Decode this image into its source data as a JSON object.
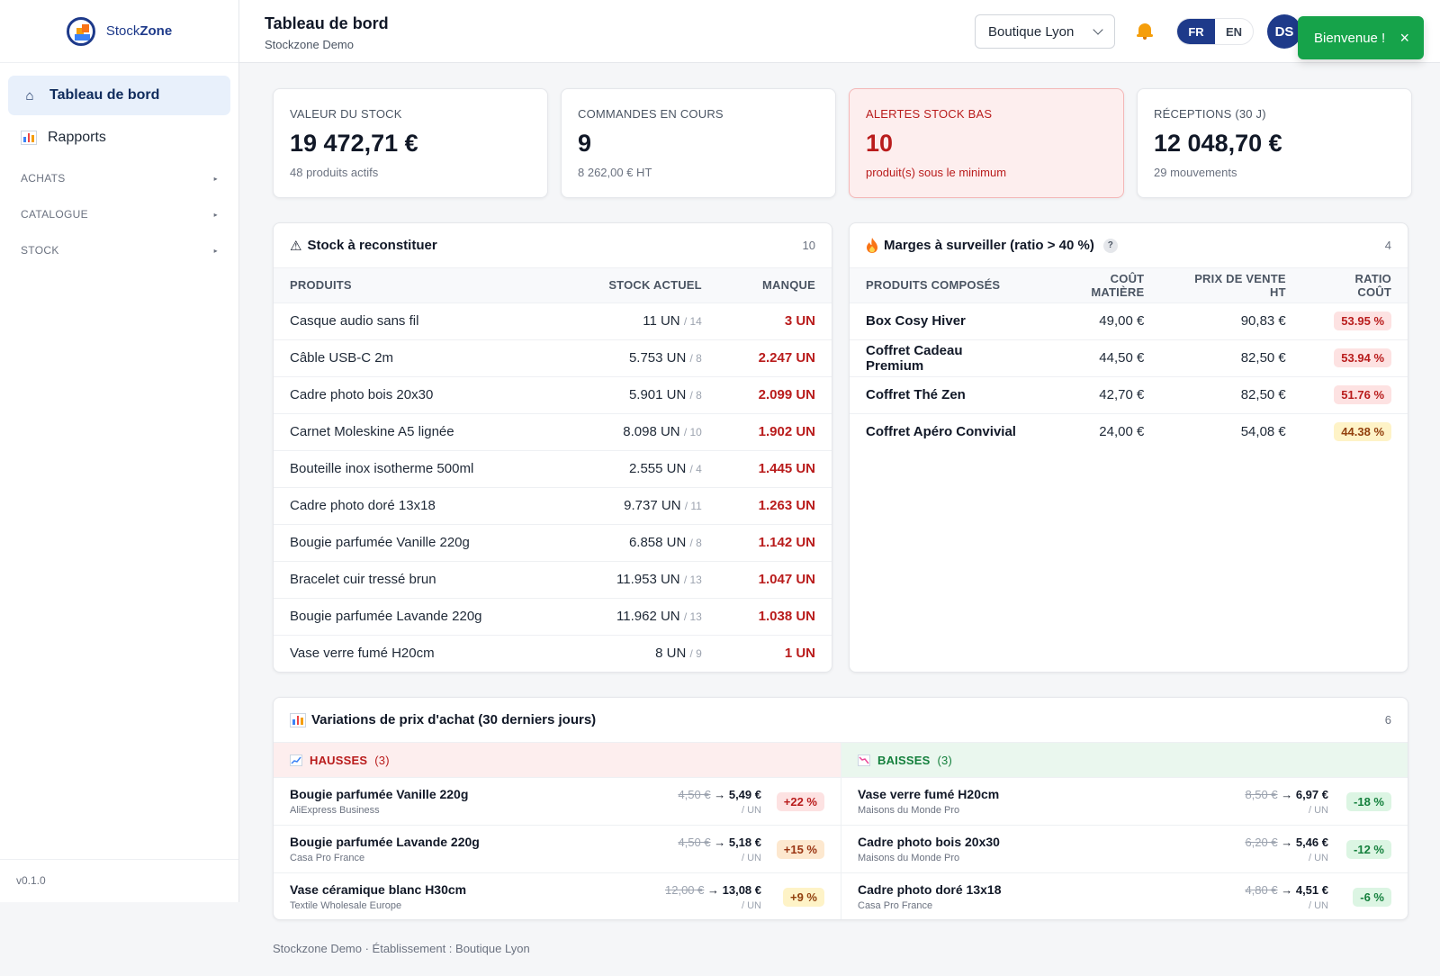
{
  "app": {
    "name_prefix": "Stock",
    "name_suffix": "Zone",
    "version": "v0.1.0"
  },
  "sidebar": {
    "items": [
      {
        "label": "Tableau de bord",
        "icon": "home-icon",
        "active": true
      },
      {
        "label": "Rapports",
        "icon": "chart-icon",
        "active": false
      }
    ],
    "sections": [
      "ACHATS",
      "CATALOGUE",
      "STOCK"
    ]
  },
  "header": {
    "title": "Tableau de bord",
    "subtitle": "Stockzone Demo",
    "store": "Boutique Lyon",
    "lang": [
      "FR",
      "EN"
    ],
    "lang_active": "FR",
    "avatar": "DS",
    "toast": "Bienvenue !",
    "toast_close": "×"
  },
  "kpis": [
    {
      "label": "VALEUR DU STOCK",
      "value": "19 472,71 €",
      "sub": "48 produits actifs"
    },
    {
      "label": "COMMANDES EN COURS",
      "value": "9",
      "sub": "8 262,00 € HT"
    },
    {
      "label": "ALERTES STOCK BAS",
      "value": "10",
      "sub": "produit(s) sous le minimum"
    },
    {
      "label": "RÉCEPTIONS (30 J)",
      "value": "12 048,70 €",
      "sub": "29 mouvements"
    }
  ],
  "restock": {
    "icon": "⚠",
    "title": "Stock à reconstituer",
    "count": "10",
    "columns": [
      "PRODUITS",
      "STOCK ACTUEL",
      "MANQUE"
    ],
    "rows": [
      {
        "product": "Casque audio sans fil",
        "stock": "11 UN",
        "min": "/ 14",
        "missing": "3 UN"
      },
      {
        "product": "Câble USB-C 2m",
        "stock": "5.753 UN",
        "min": "/ 8",
        "missing": "2.247 UN"
      },
      {
        "product": "Cadre photo bois 20x30",
        "stock": "5.901 UN",
        "min": "/ 8",
        "missing": "2.099 UN"
      },
      {
        "product": "Carnet Moleskine A5 lignée",
        "stock": "8.098 UN",
        "min": "/ 10",
        "missing": "1.902 UN"
      },
      {
        "product": "Bouteille inox isotherme 500ml",
        "stock": "2.555 UN",
        "min": "/ 4",
        "missing": "1.445 UN"
      },
      {
        "product": "Cadre photo doré 13x18",
        "stock": "9.737 UN",
        "min": "/ 11",
        "missing": "1.263 UN"
      },
      {
        "product": "Bougie parfumée Vanille 220g",
        "stock": "6.858 UN",
        "min": "/ 8",
        "missing": "1.142 UN"
      },
      {
        "product": "Bracelet cuir tressé brun",
        "stock": "11.953 UN",
        "min": "/ 13",
        "missing": "1.047 UN"
      },
      {
        "product": "Bougie parfumée Lavande 220g",
        "stock": "11.962 UN",
        "min": "/ 13",
        "missing": "1.038 UN"
      },
      {
        "product": "Vase verre fumé H20cm",
        "stock": "8 UN",
        "min": "/ 9",
        "missing": "1 UN"
      }
    ]
  },
  "margins": {
    "title": "Marges à surveiller (ratio > 40 %)",
    "help": "?",
    "count": "4",
    "columns": [
      "PRODUITS COMPOSÉS",
      "COÛT MATIÈRE",
      "PRIX DE VENTE HT",
      "RATIO COÛT"
    ],
    "rows": [
      {
        "product": "Box Cosy Hiver",
        "cost": "49,00 €",
        "price": "90,83 €",
        "ratio": "53.95 %",
        "level": "red"
      },
      {
        "product": "Coffret Cadeau Premium",
        "cost": "44,50 €",
        "price": "82,50 €",
        "ratio": "53.94 %",
        "level": "red"
      },
      {
        "product": "Coffret Thé Zen",
        "cost": "42,70 €",
        "price": "82,50 €",
        "ratio": "51.76 %",
        "level": "red"
      },
      {
        "product": "Coffret Apéro Convivial",
        "cost": "24,00 €",
        "price": "54,08 €",
        "ratio": "44.38 %",
        "level": "yellow"
      }
    ]
  },
  "variations": {
    "title": "Variations de prix d'achat (30 derniers jours)",
    "count": "6",
    "up": {
      "label": "HAUSSES",
      "count": "(3)",
      "rows": [
        {
          "product": "Bougie parfumée Vanille 220g",
          "supplier": "AliExpress Business",
          "old": "4,50 €",
          "arrow": "→",
          "new": "5,49 €",
          "unit": "/ UN",
          "delta": "+22 %",
          "tone": "red"
        },
        {
          "product": "Bougie parfumée Lavande 220g",
          "supplier": "Casa Pro France",
          "old": "4,50 €",
          "arrow": "→",
          "new": "5,18 €",
          "unit": "/ UN",
          "delta": "+15 %",
          "tone": "orange"
        },
        {
          "product": "Vase céramique blanc H30cm",
          "supplier": "Textile Wholesale Europe",
          "old": "12,00 €",
          "arrow": "→",
          "new": "13,08 €",
          "unit": "/ UN",
          "delta": "+9 %",
          "tone": "yellow"
        }
      ]
    },
    "down": {
      "label": "BAISSES",
      "count": "(3)",
      "rows": [
        {
          "product": "Vase verre fumé H20cm",
          "supplier": "Maisons du Monde Pro",
          "old": "8,50 €",
          "arrow": "→",
          "new": "6,97 €",
          "unit": "/ UN",
          "delta": "-18 %"
        },
        {
          "product": "Cadre photo bois 20x30",
          "supplier": "Maisons du Monde Pro",
          "old": "6,20 €",
          "arrow": "→",
          "new": "5,46 €",
          "unit": "/ UN",
          "delta": "-12 %"
        },
        {
          "product": "Cadre photo doré 13x18",
          "supplier": "Casa Pro France",
          "old": "4,80 €",
          "arrow": "→",
          "new": "4,51 €",
          "unit": "/ UN",
          "delta": "-6 %"
        }
      ]
    }
  },
  "footer": "Stockzone Demo · Établissement : Boutique Lyon"
}
